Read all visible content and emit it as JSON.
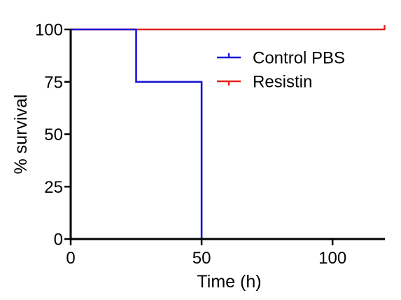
{
  "chart_data": {
    "type": "line",
    "subtype": "kaplan-meier step",
    "xlabel": "Time (h)",
    "ylabel": "% survival",
    "xlim": [
      0,
      120
    ],
    "ylim": [
      0,
      100
    ],
    "xticks": [
      0,
      50,
      100
    ],
    "yticks": [
      0,
      25,
      50,
      75,
      100
    ],
    "grid": false,
    "legend_position": "top-right",
    "series": [
      {
        "name": "Control PBS",
        "color": "#1515d6",
        "x": [
          0,
          25,
          25,
          50,
          50
        ],
        "y": [
          100,
          100,
          75,
          75,
          0
        ]
      },
      {
        "name": "Resistin",
        "color": "#e0201c",
        "x": [
          0,
          120
        ],
        "y": [
          100,
          100
        ],
        "censor_ticks_x": [
          120
        ]
      }
    ]
  }
}
